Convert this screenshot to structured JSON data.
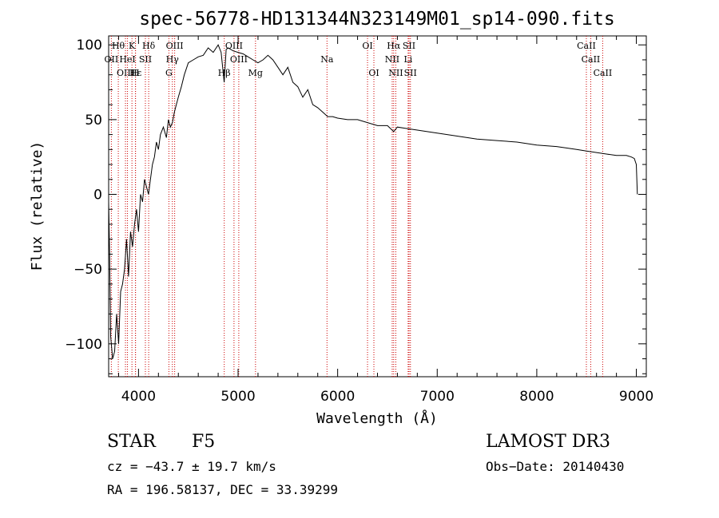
{
  "chart_data": {
    "type": "line",
    "title": "spec-56778-HD131344N323149M01_sp14-090.fits",
    "xlabel": "Wavelength (Å)",
    "ylabel": "Flux (relative)",
    "xlim": [
      3700,
      9100
    ],
    "ylim": [
      -122,
      106
    ],
    "xticks": [
      4000,
      5000,
      6000,
      7000,
      8000,
      9000
    ],
    "yticks": [
      -100,
      -50,
      0,
      50,
      100
    ],
    "ytick_labels": [
      "−100",
      "−50",
      "0",
      "50",
      "100"
    ],
    "series": [
      {
        "name": "flux",
        "x": [
          3700,
          3710,
          3720,
          3740,
          3760,
          3780,
          3800,
          3820,
          3840,
          3860,
          3880,
          3900,
          3920,
          3940,
          3960,
          3980,
          4000,
          4020,
          4040,
          4060,
          4080,
          4100,
          4120,
          4140,
          4160,
          4180,
          4200,
          4220,
          4250,
          4280,
          4300,
          4320,
          4340,
          4360,
          4380,
          4400,
          4430,
          4460,
          4500,
          4550,
          4600,
          4650,
          4700,
          4750,
          4800,
          4830,
          4860,
          4880,
          4900,
          4950,
          5000,
          5050,
          5100,
          5150,
          5200,
          5250,
          5300,
          5350,
          5400,
          5450,
          5500,
          5550,
          5600,
          5650,
          5700,
          5750,
          5800,
          5850,
          5900,
          5950,
          6000,
          6100,
          6200,
          6300,
          6400,
          6500,
          6563,
          6600,
          6700,
          6800,
          6900,
          7000,
          7200,
          7400,
          7600,
          7800,
          8000,
          8200,
          8400,
          8500,
          8600,
          8700,
          8800,
          8900,
          8950,
          8980,
          9000,
          9010
        ],
        "y": [
          -5,
          -40,
          -95,
          -110,
          -105,
          -80,
          -100,
          -65,
          -60,
          -50,
          -30,
          -55,
          -25,
          -35,
          -20,
          -10,
          -25,
          0,
          -5,
          10,
          5,
          0,
          10,
          20,
          25,
          35,
          30,
          40,
          45,
          38,
          50,
          45,
          48,
          55,
          60,
          65,
          72,
          80,
          88,
          90,
          92,
          93,
          98,
          95,
          100,
          95,
          75,
          97,
          98,
          96,
          95,
          94,
          92,
          90,
          88,
          90,
          93,
          90,
          85,
          80,
          85,
          75,
          72,
          65,
          70,
          60,
          58,
          55,
          52,
          52,
          51,
          50,
          50,
          48,
          46,
          46,
          42,
          45,
          44,
          43,
          42,
          41,
          39,
          37,
          36,
          35,
          33,
          32,
          30,
          29,
          28,
          27,
          26,
          26,
          25,
          24,
          20,
          0
        ]
      }
    ],
    "line_markers": [
      {
        "label": "Hθ",
        "x": 3797,
        "row": 1
      },
      {
        "label": "OII",
        "x": 3727,
        "row": 2
      },
      {
        "label": "OIII",
        "x": 3869,
        "row": 3
      },
      {
        "label": "HeI",
        "x": 3889,
        "row": 2
      },
      {
        "label": "K",
        "x": 3934,
        "row": 1
      },
      {
        "label": "Hε",
        "x": 3970,
        "row": 3
      },
      {
        "label": "H",
        "x": 3969,
        "row": 3
      },
      {
        "label": "SII",
        "x": 4069,
        "row": 2
      },
      {
        "label": "Hδ",
        "x": 4102,
        "row": 1
      },
      {
        "label": "OIII",
        "x": 4363,
        "row": 1
      },
      {
        "label": "Hγ",
        "x": 4340,
        "row": 2
      },
      {
        "label": "G",
        "x": 4305,
        "row": 3
      },
      {
        "label": "OIII",
        "x": 4959,
        "row": 1
      },
      {
        "label": "OIII",
        "x": 5007,
        "row": 2
      },
      {
        "label": "Hβ",
        "x": 4861,
        "row": 3
      },
      {
        "label": "Mg",
        "x": 5175,
        "row": 3
      },
      {
        "label": "Na",
        "x": 5893,
        "row": 2
      },
      {
        "label": "OI",
        "x": 6300,
        "row": 1
      },
      {
        "label": "OI",
        "x": 6364,
        "row": 3
      },
      {
        "label": "Hα",
        "x": 6563,
        "row": 1
      },
      {
        "label": "NII",
        "x": 6548,
        "row": 2
      },
      {
        "label": "NII",
        "x": 6584,
        "row": 3
      },
      {
        "label": "SII",
        "x": 6717,
        "row": 1
      },
      {
        "label": "Li",
        "x": 6708,
        "row": 2
      },
      {
        "label": "SII",
        "x": 6731,
        "row": 3
      },
      {
        "label": "CaII",
        "x": 8498,
        "row": 1
      },
      {
        "label": "CaII",
        "x": 8542,
        "row": 2
      },
      {
        "label": "CaII",
        "x": 8662,
        "row": 3
      }
    ]
  },
  "info": {
    "object_class": "STAR",
    "subclass": "F5",
    "survey": "LAMOST DR3",
    "cz": "cz = −43.7 ± 19.7 km/s",
    "obs_date": "Obs−Date: 20140430",
    "coords": "RA = 196.58137, DEC =  33.39299"
  },
  "colors": {
    "spectrum": "#000000",
    "line_markers": "#cc0000",
    "axes": "#000000",
    "background": "#ffffff"
  }
}
